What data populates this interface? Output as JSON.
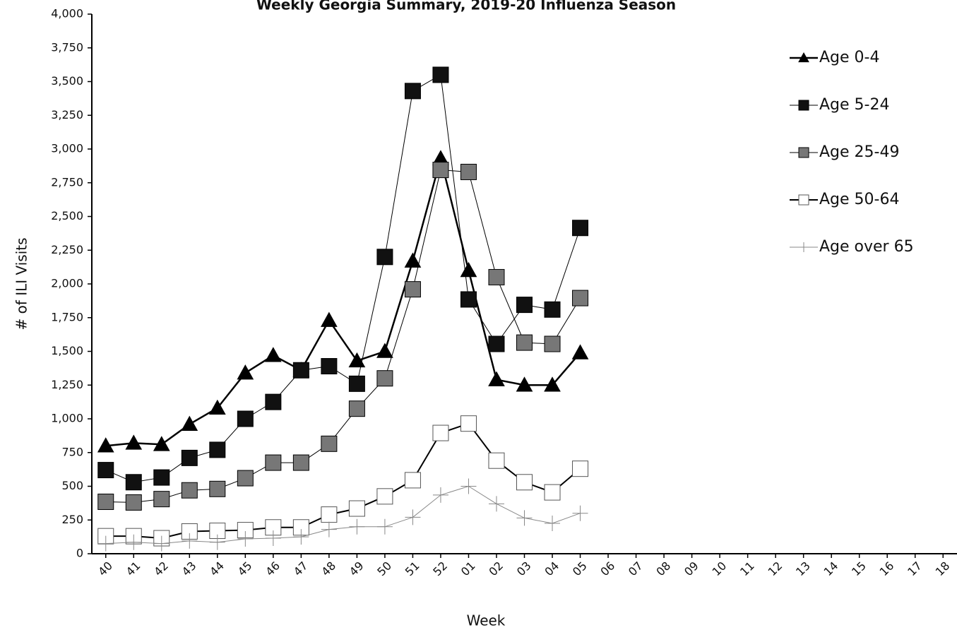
{
  "chart_data": {
    "type": "line",
    "title": "Weekly Georgia Summary, 2019-20 Influenza Season",
    "x_label": "Week",
    "y_label": "# of ILI Visits",
    "categories": [
      "40",
      "41",
      "42",
      "43",
      "44",
      "45",
      "46",
      "47",
      "48",
      "49",
      "50",
      "51",
      "52",
      "01",
      "02",
      "03",
      "04",
      "05",
      "06",
      "07",
      "08",
      "09",
      "10",
      "11",
      "12",
      "13",
      "14",
      "15",
      "16",
      "17",
      "18"
    ],
    "ylim": [
      0,
      4000
    ],
    "yticks": [
      0,
      250,
      500,
      750,
      {
        "value": 1000,
        "label": "1,000"
      },
      {
        "value": 1250,
        "label": "1,250"
      },
      {
        "value": 1500,
        "label": "1,500"
      },
      {
        "value": 1750,
        "label": "1,750"
      },
      {
        "value": 2000,
        "label": "2,000"
      },
      {
        "value": 2250,
        "label": "2,250"
      },
      {
        "value": 2500,
        "label": "2,500"
      },
      {
        "value": 2750,
        "label": "2,750"
      },
      {
        "value": 3000,
        "label": "3,000"
      },
      {
        "value": 3250,
        "label": "3,250"
      },
      {
        "value": 3500,
        "label": "3,500"
      },
      {
        "value": 3750,
        "label": "3,750"
      },
      {
        "value": 4000,
        "label": "4,000"
      }
    ],
    "series": [
      {
        "name": "Age 0-4",
        "color": "#000000",
        "marker": "triangle",
        "marker_color": "#000000",
        "line_width": 2.5,
        "values": [
          800,
          820,
          810,
          960,
          1080,
          1340,
          1470,
          1360,
          1730,
          1430,
          1500,
          2170,
          2930,
          2100,
          1290,
          1250,
          1250,
          1490,
          null,
          null,
          null,
          null,
          null,
          null,
          null,
          null,
          null,
          null,
          null,
          null,
          null
        ]
      },
      {
        "name": "Age 5-24",
        "color": "#000000",
        "marker": "square",
        "marker_color": "#111111",
        "line_width": 1,
        "values": [
          620,
          530,
          565,
          710,
          770,
          1000,
          1125,
          1360,
          1390,
          1260,
          2200,
          3430,
          3550,
          1885,
          1555,
          1845,
          1810,
          2415,
          null,
          null,
          null,
          null,
          null,
          null,
          null,
          null,
          null,
          null,
          null,
          null,
          null
        ]
      },
      {
        "name": "Age 25-49",
        "color": "#000000",
        "marker": "square",
        "marker_color": "#777777",
        "line_width": 1,
        "values": [
          385,
          380,
          405,
          470,
          480,
          560,
          675,
          675,
          815,
          1075,
          1300,
          1960,
          2845,
          2830,
          2050,
          1565,
          1555,
          1895,
          null,
          null,
          null,
          null,
          null,
          null,
          null,
          null,
          null,
          null,
          null,
          null,
          null
        ]
      },
      {
        "name": "Age 50-64",
        "color": "#000000",
        "marker": "square-open",
        "marker_color": "#ffffff",
        "line_width": 2,
        "values": [
          130,
          130,
          115,
          165,
          170,
          175,
          195,
          195,
          290,
          335,
          425,
          545,
          895,
          965,
          690,
          530,
          455,
          630,
          null,
          null,
          null,
          null,
          null,
          null,
          null,
          null,
          null,
          null,
          null,
          null,
          null
        ]
      },
      {
        "name": "Age over 65",
        "color": "#888888",
        "marker": "plus",
        "marker_color": "#888888",
        "line_width": 1,
        "values": [
          75,
          85,
          75,
          95,
          85,
          110,
          115,
          125,
          180,
          200,
          200,
          270,
          435,
          500,
          370,
          265,
          225,
          300,
          null,
          null,
          null,
          null,
          null,
          null,
          null,
          null,
          null,
          null,
          null,
          null,
          null
        ]
      }
    ]
  }
}
